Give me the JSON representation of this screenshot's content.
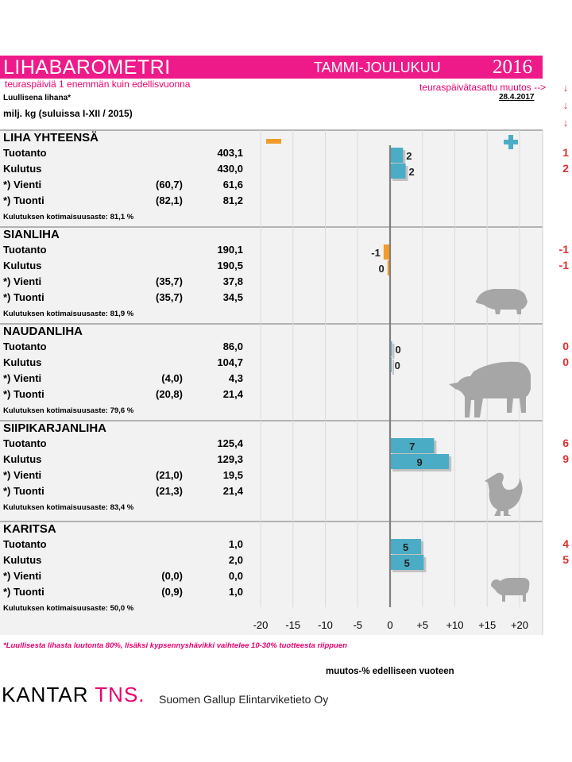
{
  "header": {
    "title": "LIHABAROMETRI",
    "period": "TAMMI-JOULUKUU",
    "year": "2016",
    "note_left": "teuraspäiviä 1 enemmän kuin edellisvuonna",
    "note_right": "teuraspäivätasattu muutos -->",
    "arrows": [
      "↓",
      "↓",
      "↓"
    ],
    "subtitle1": "Luullisena lihana*",
    "date": "28.4.2017",
    "subtitle2": "milj. kg (suluissa I-XII / 2015)",
    "colors": {
      "brand": "#ee1a8a",
      "bar": "#4bacc6",
      "negative": "#f39c2a",
      "red": "#e03030"
    }
  },
  "sections": [
    {
      "title": "LIHA YHTEENSÄ",
      "icon": "",
      "rows": [
        {
          "label": "Tuotanto",
          "prev": "",
          "value": "403,1",
          "change_label": "2",
          "adjusted": "1"
        },
        {
          "label": "Kulutus",
          "prev": "",
          "value": "430,0",
          "change_label": "2",
          "adjusted": "2"
        },
        {
          "label": "*) Vienti",
          "prev": "(60,7)",
          "value": "61,6"
        },
        {
          "label": "*) Tuonti",
          "prev": "(82,1)",
          "value": "81,2"
        }
      ],
      "selfsuff": "Kulutuksen kotimaisuusaste: 81,1 %"
    },
    {
      "title": "SIANLIHA",
      "icon": "pig-icon",
      "rows": [
        {
          "label": "Tuotanto",
          "prev": "",
          "value": "190,1",
          "change_label": "-1",
          "adjusted": "-1"
        },
        {
          "label": "Kulutus",
          "prev": "",
          "value": "190,5",
          "change_label": "0",
          "adjusted": "-1"
        },
        {
          "label": "*) Vienti",
          "prev": "(35,7)",
          "value": "37,8"
        },
        {
          "label": "*) Tuonti",
          "prev": "(35,7)",
          "value": "34,5"
        }
      ],
      "selfsuff": "Kulutuksen kotimaisuusaste: 81,9 %"
    },
    {
      "title": "NAUDANLIHA",
      "icon": "cow-icon",
      "rows": [
        {
          "label": "Tuotanto",
          "prev": "",
          "value": "86,0",
          "change_label": "0",
          "adjusted": "0"
        },
        {
          "label": "Kulutus",
          "prev": "",
          "value": "104,7",
          "change_label": "0",
          "adjusted": "0"
        },
        {
          "label": "*) Vienti",
          "prev": "(4,0)",
          "value": "4,3"
        },
        {
          "label": "*) Tuonti",
          "prev": "(20,8)",
          "value": "21,4"
        }
      ],
      "selfsuff": "Kulutuksen kotimaisuusaste: 79,6 %"
    },
    {
      "title": "SIIPIKARJANLIHA",
      "icon": "rooster-icon",
      "rows": [
        {
          "label": "Tuotanto",
          "prev": "",
          "value": "125,4",
          "change_label": "7",
          "adjusted": "6"
        },
        {
          "label": "Kulutus",
          "prev": "",
          "value": "129,3",
          "change_label": "9",
          "adjusted": "9"
        },
        {
          "label": "*) Vienti",
          "prev": "(21,0)",
          "value": "19,5"
        },
        {
          "label": "*) Tuonti",
          "prev": "(21,3)",
          "value": "21,4"
        }
      ],
      "selfsuff": "Kulutuksen kotimaisuusaste: 83,4 %"
    },
    {
      "title": "KARITSA",
      "icon": "sheep-icon",
      "rows": [
        {
          "label": "Tuotanto",
          "prev": "",
          "value": "1,0",
          "change_label": "5",
          "adjusted": "4"
        },
        {
          "label": "Kulutus",
          "prev": "",
          "value": "2,0",
          "change_label": "5",
          "adjusted": "5"
        },
        {
          "label": "*) Vienti",
          "prev": "(0,0)",
          "value": "0,0"
        },
        {
          "label": "*) Tuonti",
          "prev": "(0,9)",
          "value": "1,0"
        }
      ],
      "selfsuff": "Kulutuksen kotimaisuusaste: 50,0 %"
    }
  ],
  "legend": {
    "minus": "minus-icon",
    "plus": "plus-icon"
  },
  "chart_data": {
    "type": "bar",
    "orientation": "horizontal",
    "xlim": [
      -20,
      20
    ],
    "xticks": [
      "-20",
      "-15",
      "-10",
      "-5",
      "0",
      "+5",
      "+10",
      "+15",
      "+20"
    ],
    "xlabel": "muutos-% edelliseen vuoteen",
    "grid": true,
    "categories": [
      "LIHA YHTEENSÄ Tuotanto",
      "LIHA YHTEENSÄ Kulutus",
      "SIANLIHA Tuotanto",
      "SIANLIHA Kulutus",
      "NAUDANLIHA Tuotanto",
      "NAUDANLIHA Kulutus",
      "SIIPIKARJANLIHA Tuotanto",
      "SIIPIKARJANLIHA Kulutus",
      "KARITSA Tuotanto",
      "KARITSA Kulutus"
    ],
    "values": [
      2.0,
      2.4,
      -1.0,
      -0.4,
      0.3,
      0.2,
      6.8,
      9.1,
      4.8,
      5.2
    ],
    "labels": [
      "2",
      "2",
      "-1",
      "0",
      "0",
      "0",
      "7",
      "9",
      "5",
      "5"
    ]
  },
  "footer": {
    "footnote": "*Luullisesta lihasta luutonta 80%, lisäksi kypsennyshävikki vaihtelee 10-30% tuotteesta riippuen",
    "logo_main": "KANTAR",
    "logo_accent": "TNS.",
    "company": "Suomen Gallup Elintarviketieto Oy"
  }
}
